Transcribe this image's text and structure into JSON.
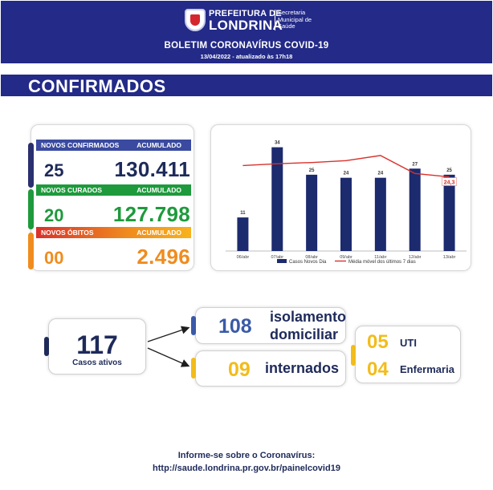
{
  "header": {
    "brand_prefix": "PREFEITURA DE",
    "brand_city": "LONDRINA",
    "secretaria_lines": [
      "Secretaria",
      "Municipal de",
      "Saúde"
    ],
    "title": "BOLETIM CORONAVÍRUS COVID-19",
    "date": "13/04/2022 - atualizado às 17h18",
    "colors": {
      "header_bg": "#232a87"
    }
  },
  "section": {
    "title": "CONFIRMADOS"
  },
  "stats": {
    "confirmed": {
      "label": "NOVOS CONFIRMADOS",
      "accum_label": "ACUMULADO",
      "daily": "25",
      "total": "130.411",
      "color": "#3a4aa0"
    },
    "recovered": {
      "label": "NOVOS CURADOS",
      "accum_label": "ACUMULADO",
      "daily": "20",
      "total": "127.798",
      "color": "#1e9a3c"
    },
    "deaths": {
      "label": "NOVOS ÓBITOS",
      "accum_label": "ACUMULADO",
      "daily": "00",
      "total": "2.496",
      "color": "#f08c1e"
    }
  },
  "chart_data": {
    "type": "bar",
    "categories": [
      "06/abr",
      "07/abr",
      "08/abr",
      "09/abr",
      "11/abr",
      "12/abr",
      "13/abr"
    ],
    "series": [
      {
        "name": "Casos Novos Dia",
        "type": "bar",
        "values": [
          11,
          34,
          25,
          24,
          24,
          27,
          25
        ],
        "color": "#1c2a6e"
      },
      {
        "name": "Média móvel dos últimos 7 dias",
        "type": "line",
        "values": [
          28.0,
          28.6,
          29.0,
          29.6,
          31.3,
          25.4,
          24.3
        ],
        "color": "#d9312b"
      }
    ],
    "data_labels": [
      "11",
      "34",
      "25",
      "24",
      "24",
      "27",
      "25"
    ],
    "last_average_label": "24,3",
    "ylim": [
      0,
      36
    ],
    "grid": false,
    "legend_position": "bottom"
  },
  "active_cases": {
    "total": "117",
    "label": "Casos ativos",
    "home_isolation": {
      "value": "108",
      "label_line1": "isolamento",
      "label_line2": "domiciliar"
    },
    "hospitalized": {
      "value": "09",
      "label": "internados"
    },
    "icu": {
      "value": "05",
      "label": "UTI"
    },
    "ward": {
      "value": "04",
      "label": "Enfermaria"
    },
    "colors": {
      "navy": "#1e2a5a",
      "blue": "#3a5aa8",
      "yellow": "#f2bc1b"
    }
  },
  "footer": {
    "line1": "Informe-se sobre o Coronavírus:",
    "line2": "http://saude.londrina.pr.gov.br/painelcovid19"
  }
}
